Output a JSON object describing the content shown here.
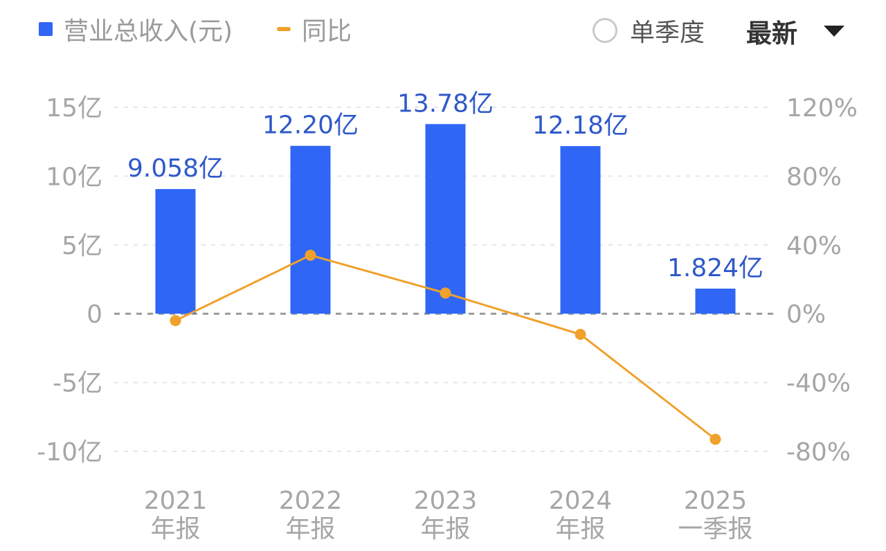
{
  "legend": {
    "bar_label": "营业总收入(元)",
    "line_label": "同比"
  },
  "controls": {
    "quarterly_label": "单季度",
    "period_label": "最新"
  },
  "chart_data": {
    "type": "bar",
    "categories": [
      {
        "year": "2021",
        "period": "年报"
      },
      {
        "year": "2022",
        "period": "年报"
      },
      {
        "year": "2023",
        "period": "年报"
      },
      {
        "year": "2024",
        "period": "年报"
      },
      {
        "year": "2025",
        "period": "一季报"
      }
    ],
    "series": [
      {
        "name": "营业总收入(元)",
        "type": "bar",
        "axis": "left",
        "values": [
          9.058,
          12.2,
          13.78,
          12.18,
          1.824
        ],
        "value_labels": [
          "9.058亿",
          "12.20亿",
          "13.78亿",
          "12.18亿",
          "1.824亿"
        ],
        "color": "#2f66f5"
      },
      {
        "name": "同比",
        "type": "line",
        "axis": "right",
        "values": [
          -4,
          34,
          12,
          -12,
          -73
        ],
        "color": "#f0a12b"
      }
    ],
    "left_axis": {
      "range": [
        -10,
        15
      ],
      "ticks": [
        15,
        10,
        5,
        0,
        -5,
        -10
      ],
      "tick_labels": [
        "15亿",
        "10亿",
        "5亿",
        "0",
        "-5亿",
        "-10亿"
      ]
    },
    "right_axis": {
      "range": [
        -80,
        120
      ],
      "tick_labels": [
        "120%",
        "80%",
        "40%",
        "0%",
        "-40%",
        "-80%"
      ]
    },
    "value_label_color": "#2e59c9",
    "grid": true,
    "legend_position": "top-left"
  }
}
